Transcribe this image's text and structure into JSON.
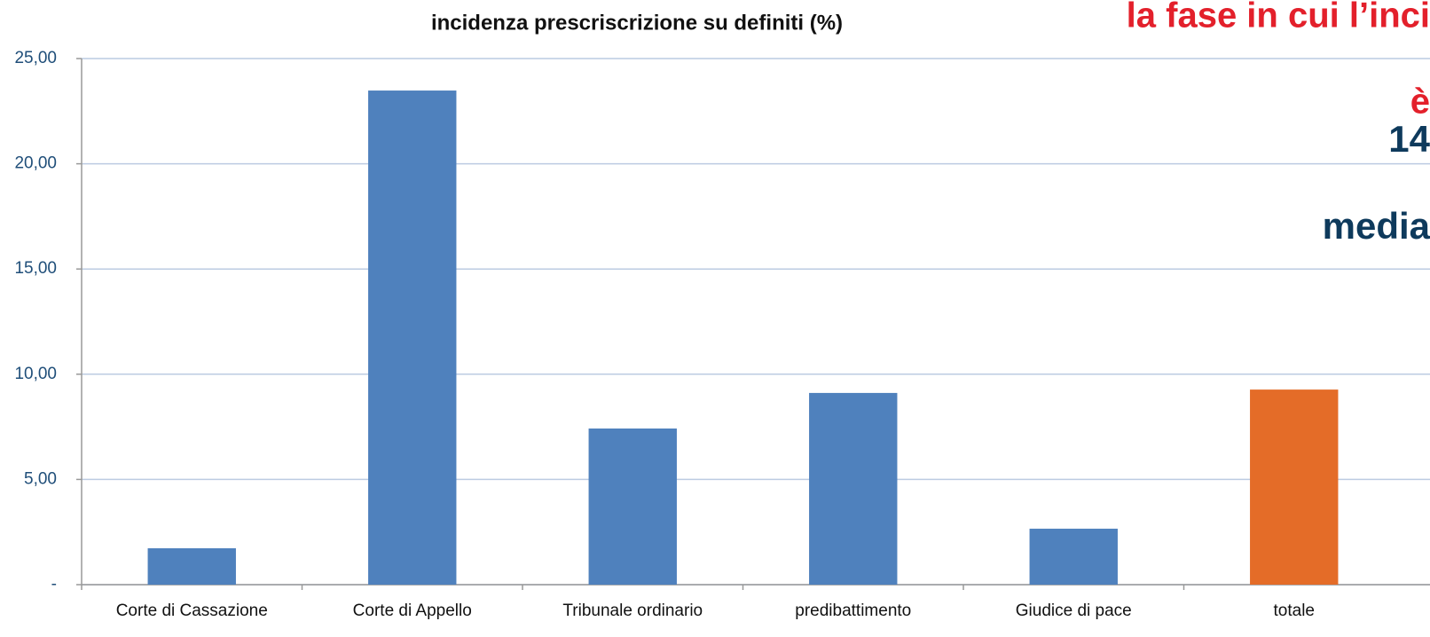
{
  "chart_data": {
    "type": "bar",
    "title": "incidenza prescriscrizione su definiti (%)",
    "categories": [
      "Corte di Cassazione",
      "Corte di Appello",
      "Tribunale ordinario",
      "predibattimento",
      "Giudice di pace",
      "totale"
    ],
    "values": [
      1.73,
      23.48,
      7.42,
      9.11,
      2.66,
      9.27
    ],
    "colors": [
      "#4f81bd",
      "#4f81bd",
      "#4f81bd",
      "#4f81bd",
      "#4f81bd",
      "#e46c28"
    ],
    "ylim": [
      0,
      25
    ],
    "yticks": [
      {
        "value": 0,
        "label": "-"
      },
      {
        "value": 5,
        "label": "5,00"
      },
      {
        "value": 10,
        "label": "10,00"
      },
      {
        "value": 15,
        "label": "15,00"
      },
      {
        "value": 20,
        "label": "20,00"
      },
      {
        "value": 25,
        "label": "25,00"
      }
    ],
    "grid": true,
    "annotations": [
      "la fase in cui l’inci",
      "è",
      "14",
      "media"
    ]
  }
}
